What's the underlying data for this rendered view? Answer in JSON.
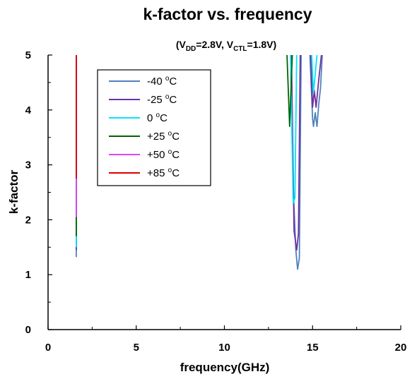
{
  "chart_data": {
    "type": "line",
    "title": "k-factor vs. frequency",
    "subtitle": {
      "prefix": "(V",
      "sub1": "DD",
      "mid": "=2.8V, V",
      "sub2": "CTL",
      "suffix": "=1.8V)"
    },
    "xlabel": "frequency(GHz)",
    "ylabel": "k-factor",
    "xlim": [
      0,
      20
    ],
    "ylim": [
      0,
      5
    ],
    "xticks": [
      "0",
      "5",
      "10",
      "15",
      "20"
    ],
    "yticks": [
      "0",
      "1",
      "2",
      "3",
      "4",
      "5"
    ],
    "grid": false,
    "legend_position": "top-left",
    "series": [
      {
        "name": "-40 oC",
        "label": {
          "sign": "-40 ",
          "sup": "o",
          "unit": "C"
        },
        "color": "#4f81bd",
        "segments": [
          [
            [
              1.6,
              1.32
            ],
            [
              1.6,
              5.0
            ]
          ],
          [
            [
              13.75,
              5.0
            ],
            [
              13.9,
              2.6
            ],
            [
              14.05,
              1.45
            ],
            [
              14.15,
              1.1
            ],
            [
              14.25,
              1.3
            ],
            [
              14.35,
              5.0
            ]
          ],
          [
            [
              14.85,
              5.0
            ],
            [
              15.0,
              3.85
            ],
            [
              15.05,
              3.7
            ],
            [
              15.15,
              3.95
            ],
            [
              15.25,
              3.7
            ],
            [
              15.35,
              4.1
            ],
            [
              15.45,
              4.4
            ],
            [
              15.55,
              5.0
            ]
          ]
        ]
      },
      {
        "name": "-25 oC",
        "label": {
          "sign": "-25 ",
          "sup": "o",
          "unit": "C"
        },
        "color": "#7030a0",
        "segments": [
          [
            [
              1.6,
              1.45
            ],
            [
              1.6,
              5.0
            ]
          ],
          [
            [
              13.8,
              5.0
            ],
            [
              13.95,
              1.8
            ],
            [
              14.1,
              1.45
            ],
            [
              14.2,
              1.75
            ],
            [
              14.3,
              5.0
            ]
          ],
          [
            [
              14.9,
              5.0
            ],
            [
              15.0,
              4.05
            ],
            [
              15.1,
              4.35
            ],
            [
              15.2,
              4.05
            ],
            [
              15.35,
              4.55
            ],
            [
              15.5,
              5.0
            ]
          ]
        ]
      },
      {
        "name": "0 oC",
        "label": {
          "sign": " 0 ",
          "sup": "o",
          "unit": "C"
        },
        "color": "#00e5ff",
        "segments": [
          [
            [
              1.6,
              1.5
            ],
            [
              1.6,
              5.0
            ]
          ],
          [
            [
              13.75,
              5.0
            ],
            [
              13.9,
              2.3
            ],
            [
              14.0,
              2.4
            ],
            [
              14.1,
              5.0
            ]
          ],
          [
            [
              14.95,
              5.0
            ],
            [
              15.05,
              4.3
            ],
            [
              15.15,
              4.65
            ],
            [
              15.25,
              5.0
            ]
          ]
        ]
      },
      {
        "name": "+25 oC",
        "label": {
          "sign": "+25 ",
          "sup": "o",
          "unit": "C"
        },
        "color": "#006400",
        "segments": [
          [
            [
              1.6,
              1.7
            ],
            [
              1.6,
              5.0
            ]
          ],
          [
            [
              13.55,
              5.0
            ],
            [
              13.7,
              3.7
            ],
            [
              13.85,
              5.0
            ]
          ]
        ]
      },
      {
        "name": "+50 oC",
        "label": {
          "sign": "+50 ",
          "sup": "o",
          "unit": "C"
        },
        "color": "#e040fb",
        "segments": [
          [
            [
              1.6,
              2.05
            ],
            [
              1.6,
              5.0
            ]
          ]
        ]
      },
      {
        "name": "+85 oC",
        "label": {
          "sign": "+85 ",
          "sup": "o",
          "unit": "C"
        },
        "color": "#d90000",
        "segments": [
          [
            [
              1.6,
              2.75
            ],
            [
              1.6,
              5.0
            ]
          ]
        ]
      }
    ]
  }
}
